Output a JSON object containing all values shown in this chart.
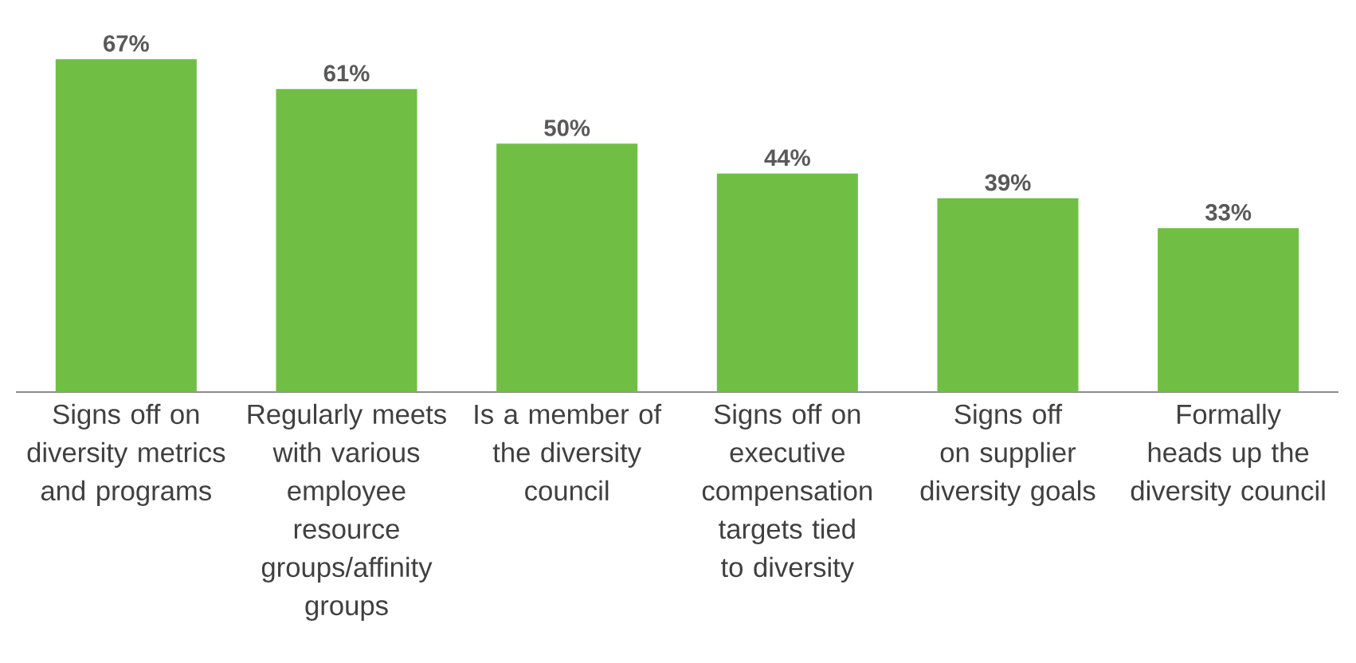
{
  "chart_data": {
    "type": "bar",
    "categories": [
      "Signs off on diversity metrics and programs",
      "Regularly meets with various employee resource groups/affinity groups",
      "Is a member of the diversity council",
      "Signs off on executive compensation targets tied to diversity",
      "Signs off on supplier diversity goals",
      "Formally heads up the diversity council"
    ],
    "values": [
      67,
      61,
      50,
      44,
      39,
      33
    ],
    "value_labels": [
      "67%",
      "61%",
      "50%",
      "44%",
      "39%",
      "33%"
    ],
    "color": "#70bf44"
  }
}
